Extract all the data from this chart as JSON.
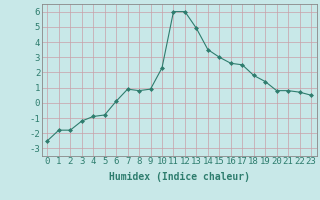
{
  "x": [
    0,
    1,
    2,
    3,
    4,
    5,
    6,
    7,
    8,
    9,
    10,
    11,
    12,
    13,
    14,
    15,
    16,
    17,
    18,
    19,
    20,
    21,
    22,
    23
  ],
  "y": [
    -2.5,
    -1.8,
    -1.8,
    -1.2,
    -0.9,
    -0.8,
    0.1,
    0.9,
    0.8,
    0.9,
    2.3,
    6.0,
    6.0,
    4.9,
    3.5,
    3.0,
    2.6,
    2.5,
    1.8,
    1.4,
    0.8,
    0.8,
    0.7,
    0.5
  ],
  "line_color": "#2e7d6e",
  "marker": "D",
  "marker_size": 2,
  "bg_color": "#c8e8e8",
  "grid_color": "#c8a0a8",
  "xlabel": "Humidex (Indice chaleur)",
  "ylabel": "",
  "xlim": [
    -0.5,
    23.5
  ],
  "ylim": [
    -3.5,
    6.5
  ],
  "yticks": [
    -3,
    -2,
    -1,
    0,
    1,
    2,
    3,
    4,
    5,
    6
  ],
  "xticks": [
    0,
    1,
    2,
    3,
    4,
    5,
    6,
    7,
    8,
    9,
    10,
    11,
    12,
    13,
    14,
    15,
    16,
    17,
    18,
    19,
    20,
    21,
    22,
    23
  ],
  "label_fontsize": 7,
  "tick_fontsize": 6.5
}
